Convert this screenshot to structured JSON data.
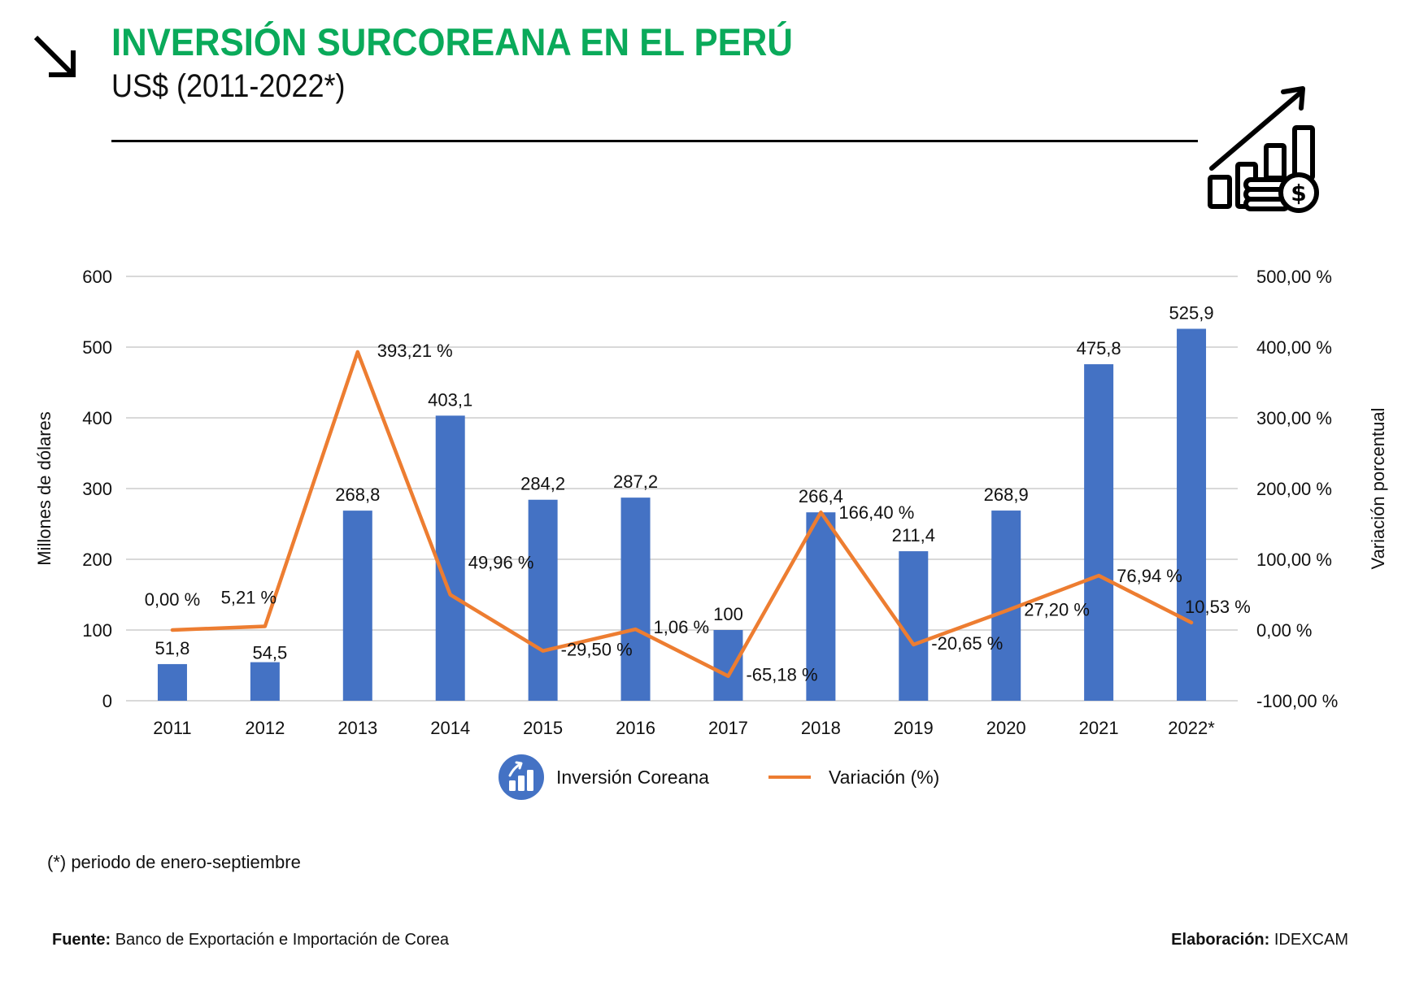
{
  "header": {
    "title": "INVERSIÓN SURCOREANA EN EL PERÚ",
    "subtitle": "US$ (2011-2022*)",
    "title_color": "#0aaa5a",
    "icons": [
      "arrow-down-right-icon",
      "growth-chart-dollar-icon"
    ]
  },
  "chart_data": {
    "type": "bar+line",
    "title": "INVERSIÓN SURCOREANA EN EL PERÚ",
    "subtitle": "US$ (2011-2022*)",
    "categories": [
      "2011",
      "2012",
      "2013",
      "2014",
      "2015",
      "2016",
      "2017",
      "2018",
      "2019",
      "2020",
      "2021",
      "2022*"
    ],
    "series": [
      {
        "name": "Inversión Coreana",
        "type": "bar",
        "axis": "left",
        "color": "#4472c4",
        "values": [
          51.8,
          54.5,
          268.8,
          403.1,
          284.2,
          287.2,
          100,
          266.4,
          211.4,
          268.9,
          475.8,
          525.9
        ],
        "labels": [
          "51,8",
          "54,5",
          "268,8",
          "403,1",
          "284,2",
          "287,2",
          "100",
          "266,4",
          "211,4",
          "268,9",
          "475,8",
          "525,9"
        ]
      },
      {
        "name": "Variación (%)",
        "type": "line",
        "axis": "right",
        "color": "#ed7d31",
        "values": [
          0.0,
          5.21,
          393.21,
          49.96,
          -29.5,
          1.06,
          -65.18,
          166.4,
          -20.65,
          27.2,
          76.94,
          10.53
        ],
        "labels": [
          "0,00 %",
          "5,21 %",
          "393,21 %",
          "49,96 %",
          "-29,50 %",
          "1,06 %",
          "-65,18 %",
          "166,40 %",
          "-20,65 %",
          "27,20 %",
          "76,94 %",
          "10,53 %"
        ]
      }
    ],
    "ylabel": "Millones de dólares",
    "ylim": [
      0,
      600
    ],
    "yticks": [
      0,
      100,
      200,
      300,
      400,
      500,
      600
    ],
    "ytick_labels": [
      "0",
      "100",
      "200",
      "300",
      "400",
      "500",
      "600"
    ],
    "y2label": "Variación porcentual",
    "y2lim": [
      -100,
      500
    ],
    "y2ticks": [
      -100,
      0,
      100,
      200,
      300,
      400,
      500
    ],
    "y2tick_labels": [
      "-100,00 %",
      "0,00 %",
      "100,00 %",
      "200,00 %",
      "300,00 %",
      "400,00 %",
      "500,00 %"
    ],
    "xlabel": "",
    "grid": true,
    "legend": "bottom-center"
  },
  "legend": {
    "bar_label": "Inversión Coreana",
    "line_label": "Variación (%)"
  },
  "footer": {
    "footnote": "(*) periodo de enero-septiembre",
    "source_label": "Fuente:",
    "source_text": " Banco de Exportación e Importación de Corea",
    "credit_label": "Elaboración:",
    "credit_text": " IDEXCAM"
  }
}
